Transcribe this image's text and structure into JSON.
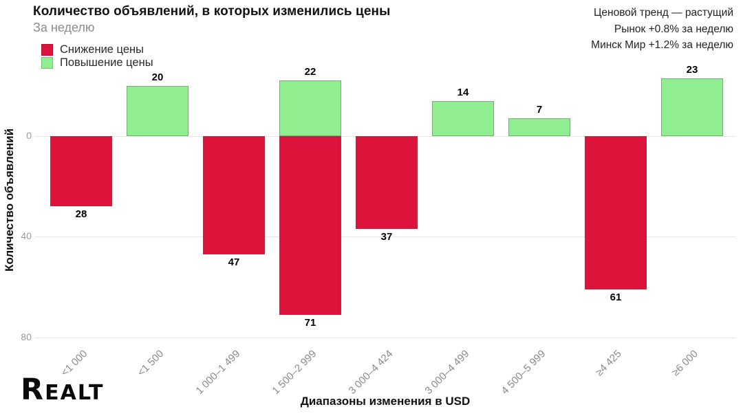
{
  "header": {
    "title": "Количество объявлений, в которых изменились цены",
    "subtitle": "За неделю"
  },
  "trend": {
    "lines": [
      "Ценовой тренд — растущий",
      "Рынок +0.8% за неделю",
      "Минск Мир +1.2% за неделю"
    ]
  },
  "legend": {
    "items": [
      {
        "label": "Снижение цены",
        "color": "#dc143c"
      },
      {
        "label": "Повышение цены",
        "color": "#90ee90"
      }
    ]
  },
  "chart_data": {
    "type": "bar",
    "title": "Количество объявлений, в которых изменились цены",
    "subtitle": "За неделю",
    "xlabel": "Диапазоны изменения в USD",
    "ylabel": "Количество объявлений",
    "categories": [
      "<1 000",
      "<1 500",
      "1 000–1 499",
      "1 500–2 999",
      "3 000–4 424",
      "3 000–4 499",
      "4 500–5 999",
      "≥4 425",
      "≥6 000"
    ],
    "series": [
      {
        "name": "Снижение цены",
        "direction": "down",
        "color": "#dc143c",
        "values": [
          28,
          null,
          47,
          71,
          37,
          null,
          null,
          61,
          null
        ]
      },
      {
        "name": "Повышение цены",
        "direction": "up",
        "color": "#90ee90",
        "values": [
          null,
          20,
          null,
          22,
          null,
          14,
          7,
          null,
          23
        ]
      }
    ],
    "y_ticks": [
      0,
      40,
      80
    ],
    "y_axis_inverted_downward": true,
    "ylim": [
      0,
      80
    ],
    "grid": "horizontal",
    "legend_position": "top-left",
    "value_labels": true
  },
  "footer": {
    "logo": "Realt"
  }
}
